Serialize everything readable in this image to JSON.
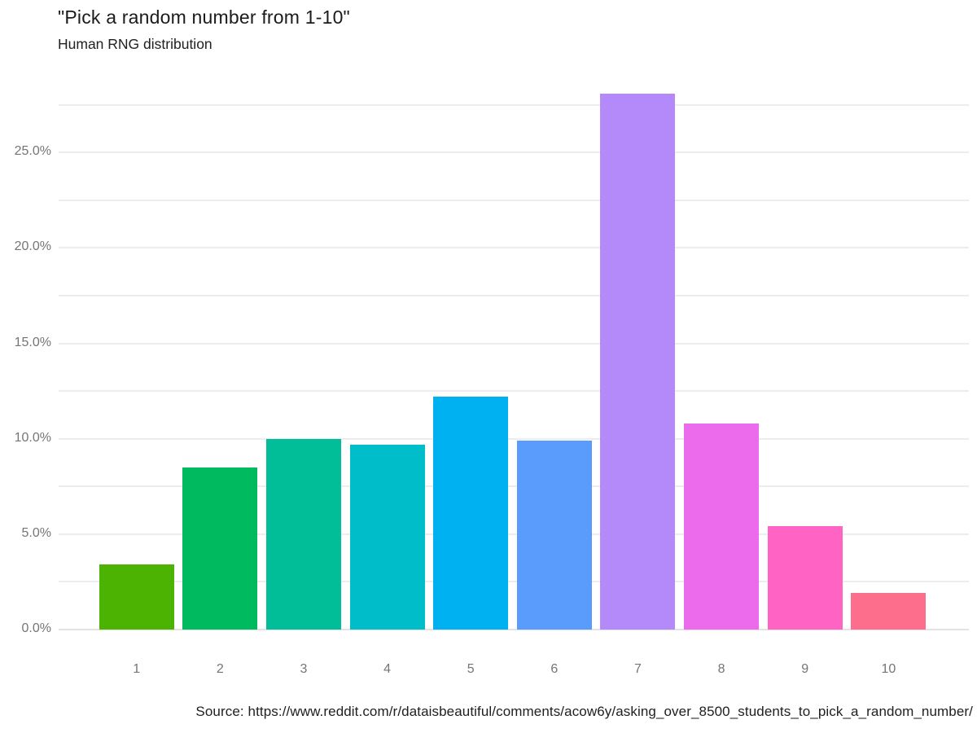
{
  "chart": {
    "title": "\"Pick a random number from 1-10\"",
    "subtitle": "Human RNG distribution",
    "source": "Source: https://www.reddit.com/r/dataisbeautiful/comments/acow6y/asking_over_8500_students_to_pick_a_random_number/"
  },
  "chart_data": {
    "type": "bar",
    "title": "\"Pick a random number from 1-10\"",
    "subtitle": "Human RNG distribution",
    "categories": [
      "1",
      "2",
      "3",
      "4",
      "5",
      "6",
      "7",
      "8",
      "9",
      "10"
    ],
    "values": [
      3.4,
      8.5,
      10.0,
      9.7,
      12.2,
      9.9,
      28.1,
      10.8,
      5.4,
      1.9
    ],
    "bar_colors": [
      "#4cb302",
      "#00ba60",
      "#01bd98",
      "#00bdca",
      "#00b1f1",
      "#599cfb",
      "#b489fa",
      "#ec6aec",
      "#ff64c5",
      "#fd6e8d"
    ],
    "xlabel": "",
    "ylabel": "",
    "ylim": [
      0,
      28.5
    ],
    "ytick_labels": [
      "0.0%",
      "5.0%",
      "10.0%",
      "15.0%",
      "20.0%",
      "25.0%"
    ],
    "ytick_major_values": [
      0,
      5,
      10,
      15,
      20,
      25
    ],
    "gridline_minor_step": 2.5,
    "gridline_max": 27.5,
    "grid": true,
    "gridline_color": "#ededed",
    "baseline_color": "#e3e3e3",
    "legend": "none",
    "source": "Source: https://www.reddit.com/r/dataisbeautiful/comments/acow6y/asking_over_8500_students_to_pick_a_random_number/"
  }
}
